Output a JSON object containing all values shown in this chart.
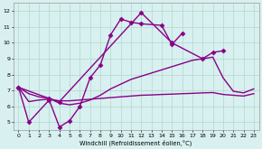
{
  "xlabel": "Windchill (Refroidissement éolien,°C)",
  "bg_color": "#d8f0f0",
  "grid_color": "#b0d8cc",
  "line_color": "#880088",
  "xlim": [
    -0.5,
    23.5
  ],
  "ylim": [
    4.5,
    12.5
  ],
  "xticks": [
    0,
    1,
    2,
    3,
    4,
    5,
    6,
    7,
    8,
    9,
    10,
    11,
    12,
    13,
    14,
    15,
    16,
    17,
    18,
    19,
    20,
    21,
    22,
    23
  ],
  "yticks": [
    5,
    6,
    7,
    8,
    9,
    10,
    11,
    12
  ],
  "series": [
    {
      "x": [
        0,
        1,
        3,
        4,
        5,
        6,
        7,
        8,
        9,
        10,
        11,
        12,
        14,
        15,
        16
      ],
      "y": [
        7.2,
        5.0,
        6.4,
        4.7,
        5.1,
        6.0,
        7.8,
        8.6,
        10.5,
        11.5,
        11.3,
        11.2,
        11.1,
        9.9,
        10.6
      ],
      "marker": "D",
      "markersize": 2.5,
      "linewidth": 1.0
    },
    {
      "x": [
        0,
        3,
        4,
        12,
        15,
        18,
        19,
        20
      ],
      "y": [
        7.2,
        6.5,
        6.3,
        11.9,
        10.0,
        9.0,
        9.4,
        9.5
      ],
      "marker": "D",
      "markersize": 2.5,
      "linewidth": 1.0
    },
    {
      "x": [
        0,
        1,
        2,
        3,
        4,
        5,
        6,
        7,
        8,
        9,
        10,
        11,
        12,
        13,
        14,
        15,
        16,
        17,
        18,
        19,
        20,
        21,
        22,
        23
      ],
      "y": [
        7.2,
        6.8,
        6.6,
        6.5,
        6.2,
        6.1,
        6.2,
        6.4,
        6.7,
        7.1,
        7.4,
        7.7,
        7.9,
        8.1,
        8.3,
        8.5,
        8.7,
        8.9,
        9.0,
        9.1,
        7.8,
        6.95,
        6.85,
        7.1
      ],
      "marker": null,
      "markersize": 0,
      "linewidth": 1.0
    },
    {
      "x": [
        0,
        1,
        2,
        3,
        4,
        5,
        6,
        7,
        8,
        9,
        10,
        11,
        12,
        13,
        14,
        15,
        16,
        17,
        18,
        19,
        20,
        21,
        22,
        23
      ],
      "y": [
        7.2,
        6.3,
        6.4,
        6.45,
        6.35,
        6.35,
        6.4,
        6.45,
        6.5,
        6.55,
        6.6,
        6.65,
        6.7,
        6.72,
        6.75,
        6.77,
        6.8,
        6.82,
        6.85,
        6.87,
        6.75,
        6.7,
        6.65,
        6.8
      ],
      "marker": null,
      "markersize": 0,
      "linewidth": 1.0
    }
  ]
}
